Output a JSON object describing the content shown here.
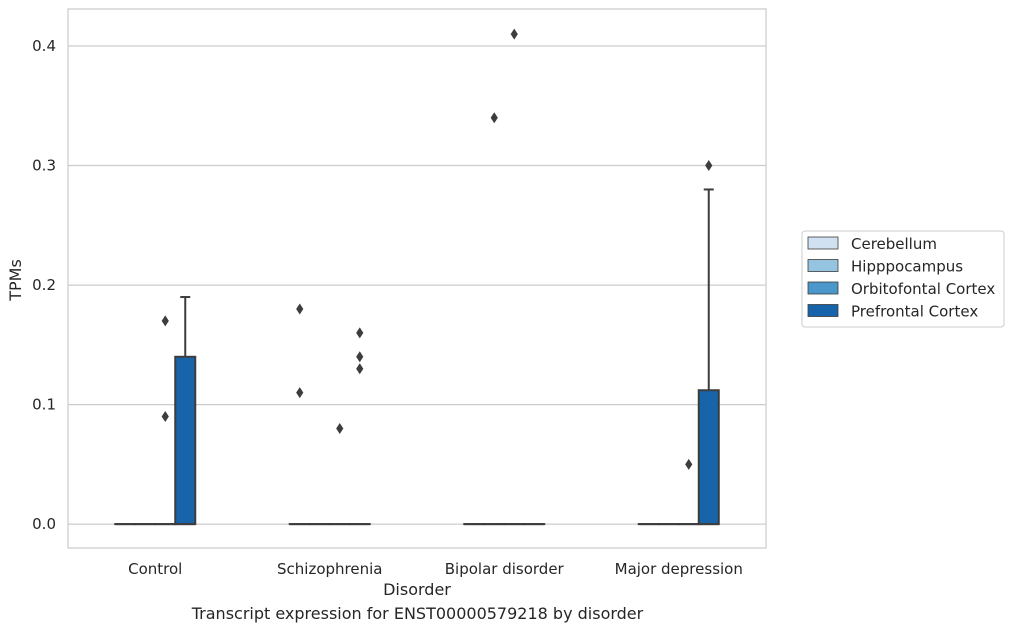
{
  "caption": "Transcript expression for ENST00000579218 by disorder",
  "chart_data": {
    "type": "box",
    "xlabel": "Disorder",
    "ylabel": "TPMs",
    "categories": [
      "Control",
      "Schizophrenia",
      "Bipolar disorder",
      "Major depression"
    ],
    "ylim": [
      -0.02,
      0.431
    ],
    "yticks": [
      "0.0",
      "0.1",
      "0.2",
      "0.3",
      "0.4"
    ],
    "grid": true,
    "legend_position": "right",
    "series": [
      {
        "name": "Cerebellum",
        "color": "#d0e1f2",
        "boxes": [
          {
            "q1": 0,
            "median": 0,
            "q3": 0,
            "whisker_low": 0,
            "whisker_high": 0,
            "outliers": []
          },
          {
            "q1": 0,
            "median": 0,
            "q3": 0,
            "whisker_low": 0,
            "whisker_high": 0,
            "outliers": [
              0.18,
              0.11
            ]
          },
          {
            "q1": 0,
            "median": 0,
            "q3": 0,
            "whisker_low": 0,
            "whisker_high": 0,
            "outliers": []
          },
          {
            "q1": 0,
            "median": 0,
            "q3": 0,
            "whisker_low": 0,
            "whisker_high": 0,
            "outliers": []
          }
        ]
      },
      {
        "name": "Hipppocampus",
        "color": "#94c4df",
        "boxes": [
          {
            "q1": 0,
            "median": 0,
            "q3": 0,
            "whisker_low": 0,
            "whisker_high": 0,
            "outliers": []
          },
          {
            "q1": 0,
            "median": 0,
            "q3": 0,
            "whisker_low": 0,
            "whisker_high": 0,
            "outliers": []
          },
          {
            "q1": 0,
            "median": 0,
            "q3": 0,
            "whisker_low": 0,
            "whisker_high": 0,
            "outliers": [
              0.34
            ]
          },
          {
            "q1": 0,
            "median": 0,
            "q3": 0,
            "whisker_low": 0,
            "whisker_high": 0,
            "outliers": []
          }
        ]
      },
      {
        "name": "Orbitofontal Cortex",
        "color": "#4a98c9",
        "boxes": [
          {
            "q1": 0,
            "median": 0,
            "q3": 0,
            "whisker_low": 0,
            "whisker_high": 0,
            "outliers": [
              0.17,
              0.09
            ]
          },
          {
            "q1": 0,
            "median": 0,
            "q3": 0,
            "whisker_low": 0,
            "whisker_high": 0,
            "outliers": [
              0.08
            ]
          },
          {
            "q1": 0,
            "median": 0,
            "q3": 0,
            "whisker_low": 0,
            "whisker_high": 0,
            "outliers": [
              0.41
            ]
          },
          {
            "q1": 0,
            "median": 0,
            "q3": 0,
            "whisker_low": 0,
            "whisker_high": 0,
            "outliers": [
              0.05
            ]
          }
        ]
      },
      {
        "name": "Prefrontal Cortex",
        "color": "#1764ab",
        "boxes": [
          {
            "q1": 0,
            "median": 0,
            "q3": 0.14,
            "whisker_low": 0,
            "whisker_high": 0.19,
            "outliers": []
          },
          {
            "q1": 0,
            "median": 0,
            "q3": 0,
            "whisker_low": 0,
            "whisker_high": 0,
            "outliers": [
              0.16,
              0.14,
              0.13
            ]
          },
          {
            "q1": 0,
            "median": 0,
            "q3": 0,
            "whisker_low": 0,
            "whisker_high": 0,
            "outliers": []
          },
          {
            "q1": 0,
            "median": 0,
            "q3": 0.112,
            "whisker_low": 0,
            "whisker_high": 0.28,
            "outliers": [
              0.3
            ]
          }
        ]
      }
    ]
  }
}
